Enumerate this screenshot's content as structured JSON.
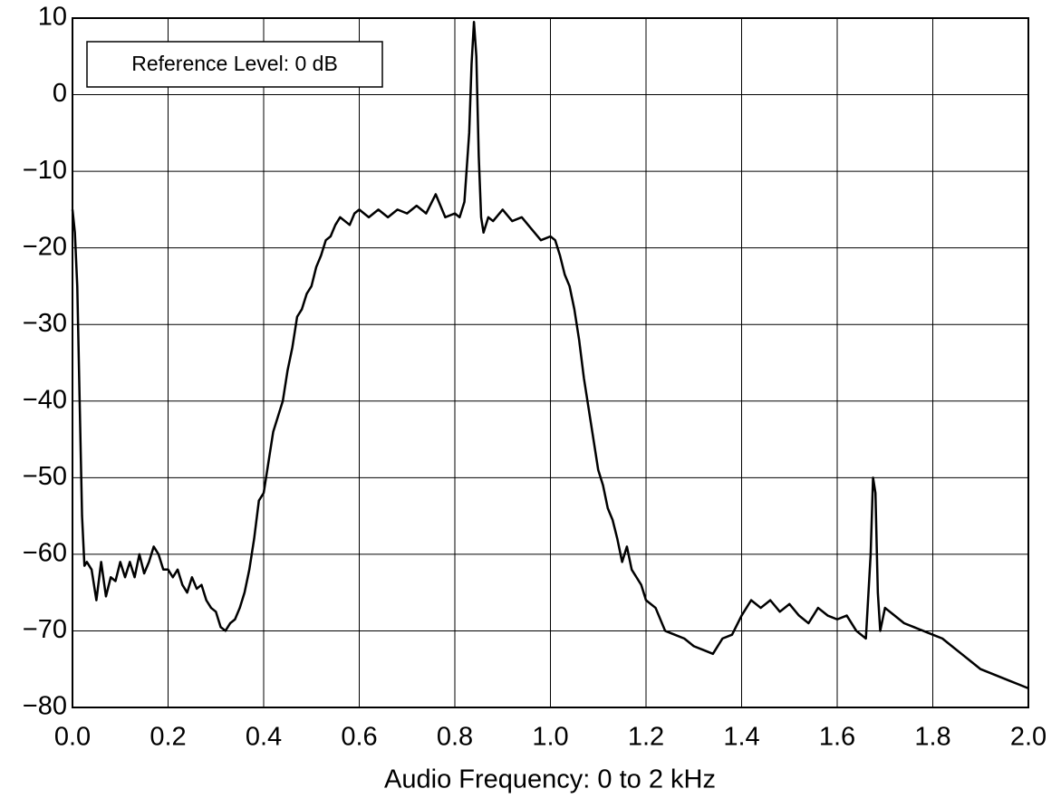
{
  "chart_data": {
    "type": "line",
    "xlabel": "Audio Frequency: 0 to 2 kHz",
    "annotation": "Reference Level: 0 dB",
    "color": "#000000",
    "grid": true,
    "xlim": [
      0,
      2
    ],
    "ylim": [
      -80,
      10
    ],
    "xticks": [
      {
        "value": 0,
        "label": "0.0"
      },
      0.2,
      0.4,
      0.6,
      0.8,
      {
        "value": 1,
        "label": "1.0"
      },
      1.2,
      1.4,
      1.6,
      1.8,
      {
        "value": 2,
        "label": "2.0"
      }
    ],
    "yticks": [
      10,
      0,
      {
        "value": -10,
        "label": "−10"
      },
      {
        "value": -20,
        "label": "−20"
      },
      {
        "value": -30,
        "label": "−30"
      },
      {
        "value": -40,
        "label": "−40"
      },
      {
        "value": -50,
        "label": "−50"
      },
      {
        "value": -60,
        "label": "−60"
      },
      {
        "value": -70,
        "label": "−70"
      },
      {
        "value": -80,
        "label": "−80"
      }
    ],
    "x": [
      0,
      0.005,
      0.01,
      0.015,
      0.02,
      0.025,
      0.03,
      0.04,
      0.05,
      0.06,
      0.07,
      0.08,
      0.09,
      0.1,
      0.11,
      0.12,
      0.13,
      0.14,
      0.15,
      0.16,
      0.17,
      0.18,
      0.19,
      0.2,
      0.21,
      0.22,
      0.23,
      0.24,
      0.25,
      0.26,
      0.27,
      0.28,
      0.29,
      0.3,
      0.31,
      0.32,
      0.33,
      0.34,
      0.35,
      0.36,
      0.37,
      0.38,
      0.39,
      0.4,
      0.41,
      0.42,
      0.43,
      0.44,
      0.45,
      0.46,
      0.47,
      0.48,
      0.49,
      0.5,
      0.51,
      0.52,
      0.53,
      0.54,
      0.55,
      0.56,
      0.57,
      0.58,
      0.59,
      0.6,
      0.62,
      0.64,
      0.66,
      0.68,
      0.7,
      0.72,
      0.74,
      0.76,
      0.78,
      0.8,
      0.81,
      0.82,
      0.83,
      0.835,
      0.84,
      0.845,
      0.85,
      0.855,
      0.86,
      0.87,
      0.88,
      0.9,
      0.92,
      0.94,
      0.96,
      0.98,
      1.0,
      1.01,
      1.02,
      1.03,
      1.04,
      1.05,
      1.06,
      1.07,
      1.08,
      1.09,
      1.1,
      1.11,
      1.12,
      1.13,
      1.14,
      1.15,
      1.16,
      1.17,
      1.18,
      1.19,
      1.2,
      1.22,
      1.24,
      1.26,
      1.28,
      1.3,
      1.32,
      1.34,
      1.36,
      1.38,
      1.4,
      1.42,
      1.44,
      1.46,
      1.48,
      1.5,
      1.52,
      1.54,
      1.56,
      1.58,
      1.6,
      1.62,
      1.64,
      1.66,
      1.67,
      1.675,
      1.68,
      1.685,
      1.69,
      1.7,
      1.72,
      1.74,
      1.76,
      1.78,
      1.8,
      1.82,
      1.84,
      1.86,
      1.88,
      1.9,
      1.92,
      1.94,
      1.96,
      1.98,
      2.0
    ],
    "values": [
      -15,
      -18,
      -25,
      -40,
      -55,
      -61.5,
      -61,
      -62,
      -66,
      -61,
      -65.5,
      -63,
      -63.5,
      -61,
      -63,
      -61,
      -63,
      -60,
      -62.5,
      -61,
      -59,
      -60,
      -62,
      -62,
      -63,
      -62,
      -64,
      -65,
      -63,
      -64.5,
      -64,
      -66,
      -67,
      -67.5,
      -69.5,
      -70,
      -69,
      -68.5,
      -67,
      -65,
      -62,
      -58,
      -53,
      -52,
      -48,
      -44,
      -42,
      -40,
      -36,
      -33,
      -29,
      -28,
      -26,
      -25,
      -22.5,
      -21,
      -19,
      -18.5,
      -17,
      -16,
      -16.5,
      -17,
      -15.5,
      -15,
      -16,
      -15,
      -16,
      -15,
      -15.5,
      -14.5,
      -15.5,
      -13,
      -16,
      -15.5,
      -16,
      -14,
      -5,
      4,
      9.5,
      5,
      -8,
      -16,
      -18,
      -16,
      -16.5,
      -15,
      -16.5,
      -16,
      -17.5,
      -19,
      -18.5,
      -19,
      -21,
      -23.5,
      -25,
      -28,
      -32,
      -37,
      -41,
      -45,
      -49,
      -51,
      -54,
      -55.5,
      -58,
      -61,
      -59,
      -62,
      -63,
      -64,
      -66,
      -67,
      -70,
      -70.5,
      -71,
      -72,
      -72.5,
      -73,
      -71,
      -70.5,
      -68,
      -66,
      -67,
      -66,
      -67.5,
      -66.5,
      -68,
      -69,
      -67,
      -68,
      -68.5,
      -68,
      -70,
      -71,
      -60,
      -50,
      -52,
      -65,
      -70,
      -67,
      -68,
      -69,
      -69.5,
      -70,
      -70.5,
      -71,
      -72,
      -73,
      -74,
      -75,
      -75.5,
      -76,
      -76.5,
      -77,
      -77.5
    ]
  }
}
